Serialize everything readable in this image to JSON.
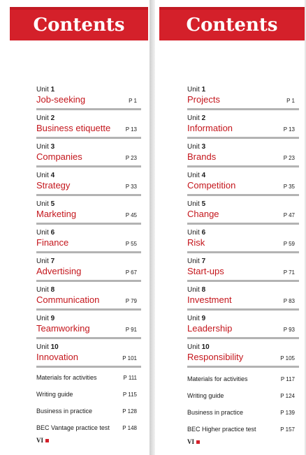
{
  "left": {
    "title": "Contents",
    "units": [
      {
        "num": "1",
        "title": "Job-seeking",
        "page": "P 1"
      },
      {
        "num": "2",
        "title": "Business etiquette",
        "page": "P 13"
      },
      {
        "num": "3",
        "title": "Companies",
        "page": "P 23"
      },
      {
        "num": "4",
        "title": "Strategy",
        "page": "P 33"
      },
      {
        "num": "5",
        "title": "Marketing",
        "page": "P 45"
      },
      {
        "num": "6",
        "title": "Finance",
        "page": "P 55"
      },
      {
        "num": "7",
        "title": "Advertising",
        "page": "P 67"
      },
      {
        "num": "8",
        "title": "Communication",
        "page": "P 79"
      },
      {
        "num": "9",
        "title": "Teamworking",
        "page": "P 91"
      },
      {
        "num": "10",
        "title": "Innovation",
        "page": "P 101"
      }
    ],
    "extras": [
      {
        "label": "Materials for activities",
        "page": "P 111"
      },
      {
        "label": "Writing guide",
        "page": "P 115"
      },
      {
        "label": "Business in practice",
        "page": "P 128"
      },
      {
        "label": "BEC Vantage practice test",
        "page": "P 148"
      }
    ],
    "folio": "VI"
  },
  "right": {
    "title": "Contents",
    "units": [
      {
        "num": "1",
        "title": "Projects",
        "page": "P 1"
      },
      {
        "num": "2",
        "title": "Information",
        "page": "P 13"
      },
      {
        "num": "3",
        "title": "Brands",
        "page": "P 23"
      },
      {
        "num": "4",
        "title": "Competition",
        "page": "P 35"
      },
      {
        "num": "5",
        "title": "Change",
        "page": "P 47"
      },
      {
        "num": "6",
        "title": "Risk",
        "page": "P 59"
      },
      {
        "num": "7",
        "title": "Start-ups",
        "page": "P 71"
      },
      {
        "num": "8",
        "title": "Investment",
        "page": "P 83"
      },
      {
        "num": "9",
        "title": "Leadership",
        "page": "P 93"
      },
      {
        "num": "10",
        "title": "Responsibility",
        "page": "P 105"
      }
    ],
    "extras": [
      {
        "label": "Materials for activities",
        "page": "P 117"
      },
      {
        "label": "Writing guide",
        "page": "P 124"
      },
      {
        "label": "Business in practice",
        "page": "P 139"
      },
      {
        "label": "BEC Higher practice test",
        "page": "P 157"
      }
    ],
    "folio": "VI"
  },
  "unit_word": "Unit",
  "colors": {
    "accent": "#d4202a",
    "title_red": "#c4161c",
    "rule": "#b3b3b3"
  }
}
